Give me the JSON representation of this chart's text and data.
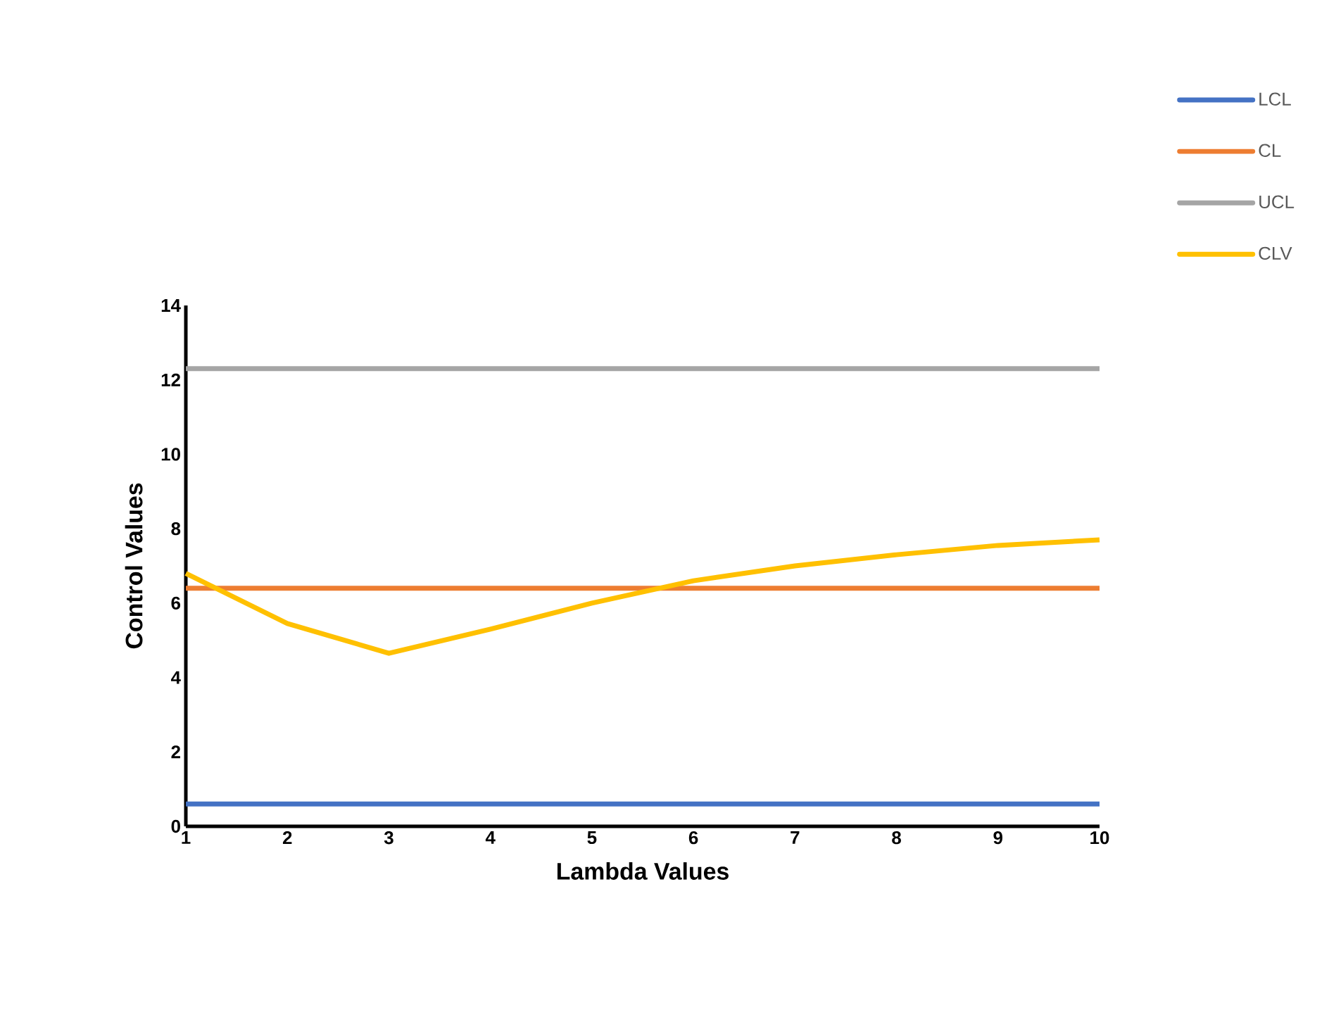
{
  "chart_data": {
    "type": "line",
    "xlabel": "Lambda Values",
    "ylabel": "Control Values",
    "x": [
      1,
      2,
      3,
      4,
      5,
      6,
      7,
      8,
      9,
      10
    ],
    "xlim": [
      1,
      10
    ],
    "xticks": [
      1,
      2,
      3,
      4,
      5,
      6,
      7,
      8,
      9,
      10
    ],
    "ylim": [
      0,
      14
    ],
    "yticks": [
      0,
      2,
      4,
      6,
      8,
      10,
      12,
      14
    ],
    "grid": false,
    "legend": "top right",
    "marker": "none",
    "line_style": "solid",
    "series": [
      {
        "name": "LCL",
        "color": "#4472c4",
        "values": [
          0.6,
          0.6,
          0.6,
          0.6,
          0.6,
          0.6,
          0.6,
          0.6,
          0.6,
          0.6
        ]
      },
      {
        "name": "CL",
        "color": "#ed7d31",
        "values": [
          6.4,
          6.4,
          6.4,
          6.4,
          6.4,
          6.4,
          6.4,
          6.4,
          6.4,
          6.4
        ]
      },
      {
        "name": "UCL",
        "color": "#a5a5a5",
        "values": [
          12.3,
          12.3,
          12.3,
          12.3,
          12.3,
          12.3,
          12.3,
          12.3,
          12.3,
          12.3
        ]
      },
      {
        "name": "CLV",
        "color": "#ffc000",
        "values": [
          6.8,
          5.45,
          4.65,
          5.3,
          6.0,
          6.6,
          7.0,
          7.3,
          7.55,
          7.7
        ]
      }
    ]
  }
}
